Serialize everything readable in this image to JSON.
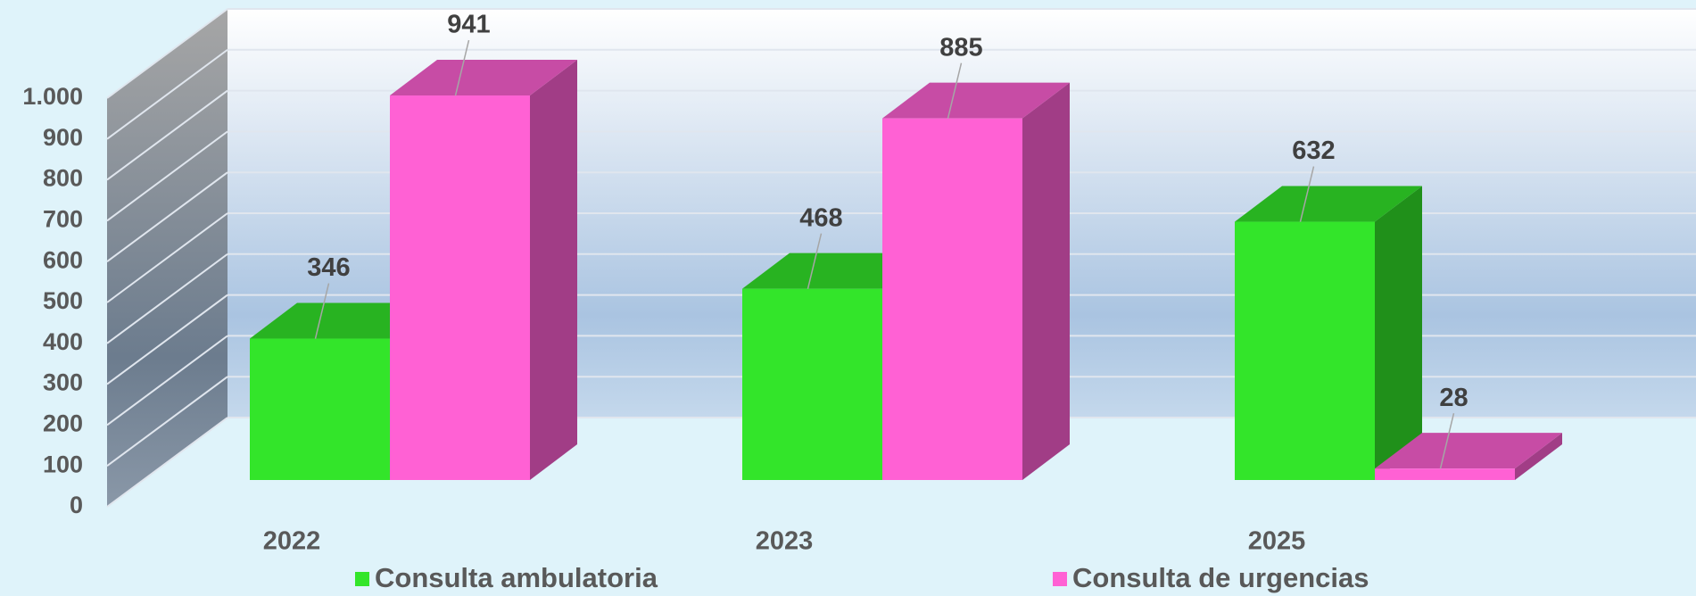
{
  "chart_data": {
    "type": "bar3d",
    "categories": [
      "2022",
      "2023",
      "2025"
    ],
    "series": [
      {
        "name": "Consulta ambulatoria",
        "color": "#33e52a",
        "values": [
          346,
          468,
          632
        ]
      },
      {
        "name": "Consulta de urgencias",
        "color": "#ff61d4",
        "values": [
          941,
          885,
          28
        ]
      }
    ],
    "ylim": [
      0,
      1000
    ],
    "yticks": [
      0,
      100,
      200,
      300,
      400,
      500,
      600,
      700,
      800,
      900,
      {
        "value": 1000,
        "label": "1.000"
      }
    ],
    "grid": true,
    "legend": "bottom"
  }
}
